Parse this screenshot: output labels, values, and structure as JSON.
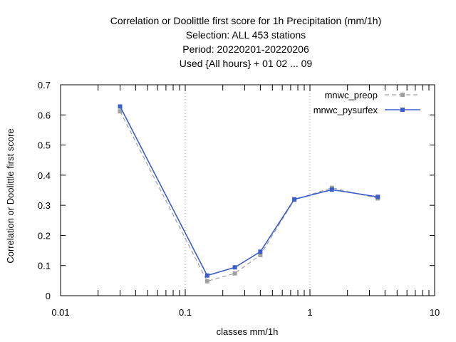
{
  "chart_data": {
    "type": "line",
    "title_lines": [
      "Correlation or Doolittle first score  for 1h Precipitation (mm/1h)",
      "Selection: ALL    453 stations",
      "Period: 20220201-20220206",
      "Used {All hours} + 01 02 ... 09"
    ],
    "xlabel": "classes mm/1h",
    "ylabel": "Correlation or Doolittle first score",
    "x_scale": "log",
    "xlim": [
      0.01,
      10
    ],
    "ylim": [
      0,
      0.7
    ],
    "x_ticks": [
      0.01,
      0.1,
      1,
      10
    ],
    "x_tick_labels": [
      "0.01",
      "0.1",
      "1",
      "10"
    ],
    "y_ticks": [
      0,
      0.1,
      0.2,
      0.3,
      0.4,
      0.5,
      0.6,
      0.7
    ],
    "y_tick_labels": [
      "0",
      "0.1",
      "0.2",
      "0.3",
      "0.4",
      "0.5",
      "0.6",
      "0.7"
    ],
    "grid": "major x ticks only (dotted)",
    "legend_position": "top-right",
    "series": [
      {
        "name": "mnwc_preop",
        "color": "#a0a0a0",
        "line_style": "dashed",
        "x": [
          0.03,
          0.15,
          0.25,
          0.4,
          0.75,
          1.5,
          3.5
        ],
        "y": [
          0.612,
          0.048,
          0.074,
          0.135,
          0.318,
          0.358,
          0.323
        ]
      },
      {
        "name": "mnwc_pysurfex",
        "color": "#3a5fcd",
        "line_style": "solid",
        "x": [
          0.03,
          0.15,
          0.25,
          0.4,
          0.75,
          1.5,
          3.5
        ],
        "y": [
          0.628,
          0.067,
          0.094,
          0.146,
          0.32,
          0.352,
          0.328
        ]
      }
    ]
  }
}
